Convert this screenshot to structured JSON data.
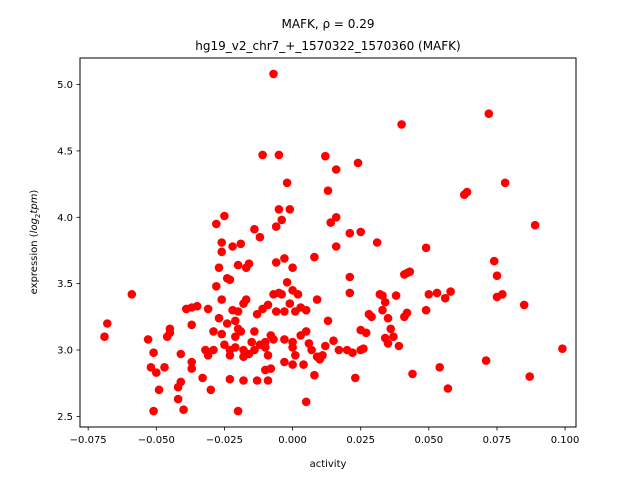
{
  "chart_data": {
    "type": "scatter",
    "title_line1": "MAFK, ρ = 0.29",
    "title_line2": "hg19_v2_chr7_+_1570322_1570360 (MAFK)",
    "xlabel": "activity",
    "ylabel_prefix": "expression (",
    "ylabel_italic": "log",
    "ylabel_sub": "2",
    "ylabel_italic2": "tpm",
    "ylabel_suffix": ")",
    "xlim": [
      -0.078,
      0.104
    ],
    "ylim": [
      2.42,
      5.2
    ],
    "xticks": [
      -0.075,
      -0.05,
      -0.025,
      0.0,
      0.025,
      0.05,
      0.075,
      0.1
    ],
    "xtick_labels": [
      "−0.075",
      "−0.050",
      "−0.025",
      "0.000",
      "0.025",
      "0.050",
      "0.075",
      "0.100"
    ],
    "yticks": [
      2.5,
      3.0,
      3.5,
      4.0,
      4.5,
      5.0
    ],
    "ytick_labels": [
      "2.5",
      "3.0",
      "3.5",
      "4.0",
      "4.5",
      "5.0"
    ],
    "marker_color": "#ff0000",
    "grid": false,
    "points": [
      [
        -0.069,
        3.1
      ],
      [
        -0.068,
        3.2
      ],
      [
        -0.059,
        3.42
      ],
      [
        -0.053,
        3.08
      ],
      [
        -0.052,
        2.87
      ],
      [
        -0.051,
        2.98
      ],
      [
        -0.051,
        2.54
      ],
      [
        -0.05,
        2.83
      ],
      [
        -0.049,
        2.7
      ],
      [
        -0.047,
        2.87
      ],
      [
        -0.046,
        3.1
      ],
      [
        -0.045,
        3.13
      ],
      [
        -0.045,
        3.16
      ],
      [
        -0.042,
        2.72
      ],
      [
        -0.042,
        2.63
      ],
      [
        -0.041,
        2.97
      ],
      [
        -0.041,
        2.76
      ],
      [
        -0.04,
        2.55
      ],
      [
        -0.039,
        3.31
      ],
      [
        -0.037,
        2.91
      ],
      [
        -0.037,
        2.86
      ],
      [
        -0.037,
        3.19
      ],
      [
        -0.037,
        3.32
      ],
      [
        -0.035,
        3.33
      ],
      [
        -0.033,
        2.79
      ],
      [
        -0.032,
        3.0
      ],
      [
        -0.031,
        2.96
      ],
      [
        -0.031,
        3.31
      ],
      [
        -0.03,
        2.7
      ],
      [
        -0.029,
        3.14
      ],
      [
        -0.029,
        3.0
      ],
      [
        -0.028,
        3.95
      ],
      [
        -0.028,
        3.48
      ],
      [
        -0.027,
        3.24
      ],
      [
        -0.027,
        3.62
      ],
      [
        -0.026,
        3.81
      ],
      [
        -0.026,
        3.74
      ],
      [
        -0.026,
        3.38
      ],
      [
        -0.026,
        3.12
      ],
      [
        -0.025,
        3.04
      ],
      [
        -0.025,
        4.01
      ],
      [
        -0.024,
        3.54
      ],
      [
        -0.024,
        3.2
      ],
      [
        -0.023,
        3.53
      ],
      [
        -0.023,
        2.96
      ],
      [
        -0.023,
        2.78
      ],
      [
        -0.023,
        3.0
      ],
      [
        -0.022,
        3.78
      ],
      [
        -0.022,
        3.3
      ],
      [
        -0.021,
        3.1
      ],
      [
        -0.021,
        3.22
      ],
      [
        -0.021,
        3.02
      ],
      [
        -0.02,
        3.16
      ],
      [
        -0.02,
        3.29
      ],
      [
        -0.02,
        2.54
      ],
      [
        -0.02,
        3.64
      ],
      [
        -0.019,
        3.8
      ],
      [
        -0.019,
        3.14
      ],
      [
        -0.018,
        3.35
      ],
      [
        -0.018,
        2.95
      ],
      [
        -0.018,
        3.0
      ],
      [
        -0.018,
        2.77
      ],
      [
        -0.017,
        3.38
      ],
      [
        -0.017,
        3.62
      ],
      [
        -0.016,
        3.65
      ],
      [
        -0.016,
        2.97
      ],
      [
        -0.015,
        3.06
      ],
      [
        -0.014,
        3.14
      ],
      [
        -0.014,
        3.91
      ],
      [
        -0.014,
        3.0
      ],
      [
        -0.013,
        3.27
      ],
      [
        -0.013,
        2.77
      ],
      [
        -0.012,
        3.04
      ],
      [
        -0.012,
        3.85
      ],
      [
        -0.011,
        4.47
      ],
      [
        -0.011,
        3.31
      ],
      [
        -0.01,
        3.02
      ],
      [
        -0.01,
        2.85
      ],
      [
        -0.01,
        3.06
      ],
      [
        -0.009,
        3.34
      ],
      [
        -0.009,
        2.96
      ],
      [
        -0.009,
        2.77
      ],
      [
        -0.008,
        3.11
      ],
      [
        -0.008,
        2.86
      ],
      [
        -0.007,
        5.08
      ],
      [
        -0.007,
        3.08
      ],
      [
        -0.007,
        3.42
      ],
      [
        -0.006,
        3.93
      ],
      [
        -0.006,
        3.66
      ],
      [
        -0.006,
        3.29
      ],
      [
        -0.005,
        4.47
      ],
      [
        -0.005,
        4.06
      ],
      [
        -0.005,
        3.43
      ],
      [
        -0.004,
        3.98
      ],
      [
        -0.004,
        3.42
      ],
      [
        -0.003,
        3.08
      ],
      [
        -0.003,
        3.69
      ],
      [
        -0.003,
        2.91
      ],
      [
        -0.003,
        3.29
      ],
      [
        -0.002,
        3.51
      ],
      [
        -0.002,
        4.26
      ],
      [
        -0.001,
        3.35
      ],
      [
        -0.001,
        4.06
      ],
      [
        0.0,
        3.45
      ],
      [
        0.0,
        3.06
      ],
      [
        0.0,
        3.62
      ],
      [
        0.0,
        2.89
      ],
      [
        0.0,
        3.02
      ],
      [
        0.001,
        3.29
      ],
      [
        0.001,
        2.96
      ],
      [
        0.002,
        3.42
      ],
      [
        0.003,
        3.11
      ],
      [
        0.003,
        3.32
      ],
      [
        0.004,
        2.89
      ],
      [
        0.005,
        3.14
      ],
      [
        0.005,
        3.3
      ],
      [
        0.005,
        2.61
      ],
      [
        0.006,
        3.05
      ],
      [
        0.007,
        3.0
      ],
      [
        0.008,
        3.7
      ],
      [
        0.008,
        2.81
      ],
      [
        0.009,
        2.95
      ],
      [
        0.009,
        3.38
      ],
      [
        0.01,
        2.93
      ],
      [
        0.011,
        2.96
      ],
      [
        0.012,
        4.46
      ],
      [
        0.012,
        3.03
      ],
      [
        0.013,
        4.2
      ],
      [
        0.013,
        3.22
      ],
      [
        0.014,
        3.96
      ],
      [
        0.015,
        3.07
      ],
      [
        0.016,
        4.36
      ],
      [
        0.016,
        4.0
      ],
      [
        0.016,
        3.78
      ],
      [
        0.017,
        3.0
      ],
      [
        0.02,
        3.0
      ],
      [
        0.021,
        3.55
      ],
      [
        0.021,
        3.88
      ],
      [
        0.021,
        3.43
      ],
      [
        0.022,
        2.98
      ],
      [
        0.023,
        2.79
      ],
      [
        0.024,
        4.41
      ],
      [
        0.025,
        3.15
      ],
      [
        0.025,
        3.89
      ],
      [
        0.025,
        3.0
      ],
      [
        0.026,
        3.01
      ],
      [
        0.027,
        3.13
      ],
      [
        0.028,
        3.27
      ],
      [
        0.029,
        3.25
      ],
      [
        0.031,
        3.81
      ],
      [
        0.032,
        3.42
      ],
      [
        0.033,
        3.3
      ],
      [
        0.033,
        3.41
      ],
      [
        0.034,
        3.36
      ],
      [
        0.034,
        3.09
      ],
      [
        0.035,
        3.05
      ],
      [
        0.035,
        3.24
      ],
      [
        0.036,
        3.16
      ],
      [
        0.037,
        3.1
      ],
      [
        0.038,
        3.41
      ],
      [
        0.039,
        3.03
      ],
      [
        0.04,
        4.7
      ],
      [
        0.041,
        3.57
      ],
      [
        0.041,
        3.25
      ],
      [
        0.042,
        3.28
      ],
      [
        0.042,
        3.58
      ],
      [
        0.043,
        3.59
      ],
      [
        0.044,
        2.82
      ],
      [
        0.049,
        3.77
      ],
      [
        0.049,
        3.3
      ],
      [
        0.05,
        3.42
      ],
      [
        0.053,
        3.43
      ],
      [
        0.054,
        2.87
      ],
      [
        0.056,
        3.39
      ],
      [
        0.057,
        2.71
      ],
      [
        0.058,
        3.44
      ],
      [
        0.063,
        4.17
      ],
      [
        0.064,
        4.19
      ],
      [
        0.071,
        2.92
      ],
      [
        0.072,
        4.78
      ],
      [
        0.074,
        3.67
      ],
      [
        0.075,
        3.56
      ],
      [
        0.075,
        3.4
      ],
      [
        0.077,
        3.42
      ],
      [
        0.078,
        4.26
      ],
      [
        0.085,
        3.34
      ],
      [
        0.087,
        2.8
      ],
      [
        0.089,
        3.94
      ],
      [
        0.099,
        3.01
      ]
    ]
  }
}
